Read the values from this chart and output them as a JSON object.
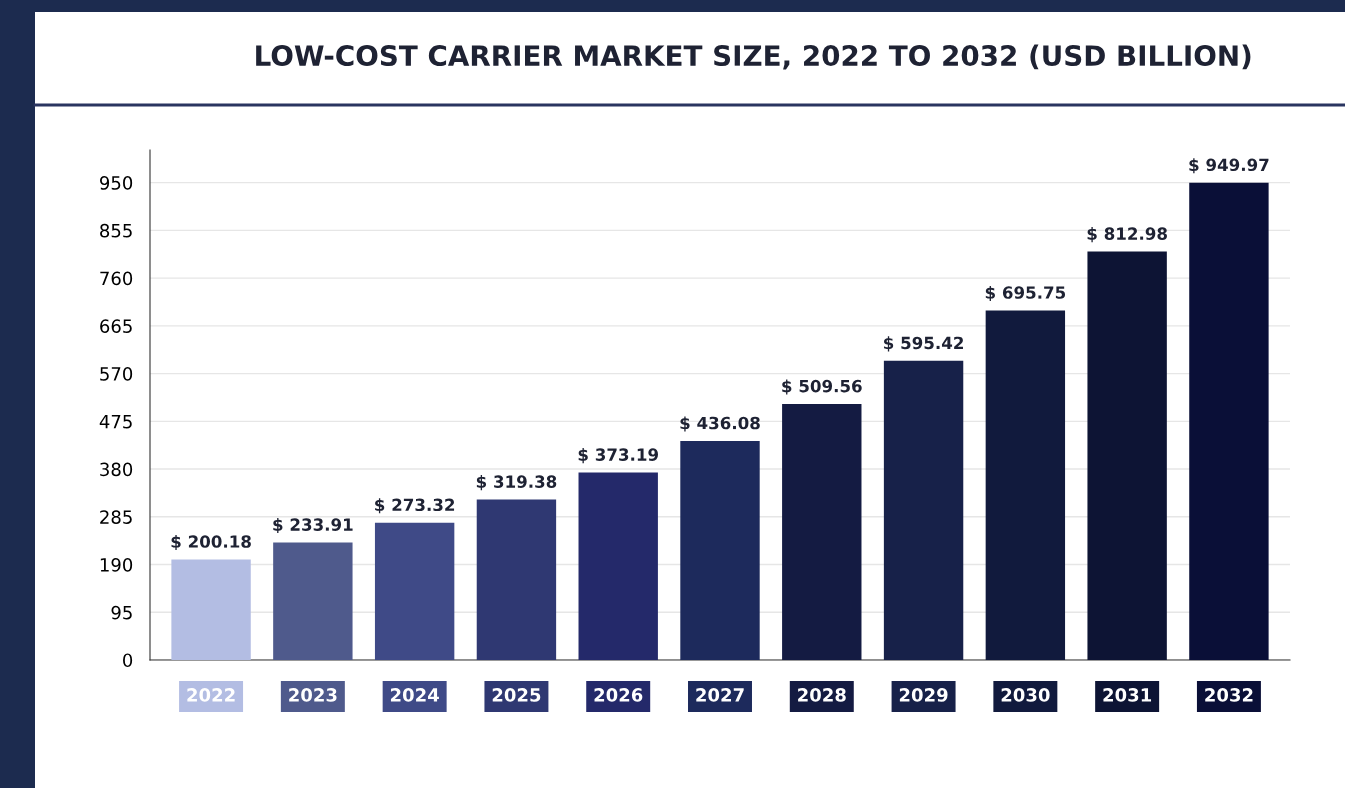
{
  "chart_data": {
    "type": "bar",
    "title": "LOW-COST CARRIER MARKET SIZE, 2022 TO 2032 (USD BILLION)",
    "categories": [
      "2022",
      "2023",
      "2024",
      "2025",
      "2026",
      "2027",
      "2028",
      "2029",
      "2030",
      "2031",
      "2032"
    ],
    "values": [
      200.18,
      233.91,
      273.32,
      319.38,
      373.19,
      436.08,
      509.56,
      595.42,
      695.75,
      812.98,
      949.97
    ],
    "value_labels": [
      "$ 200.18",
      "$ 233.91",
      "$ 273.32",
      "$ 319.38",
      "$ 373.19",
      "$ 436.08",
      "$ 509.56",
      "$ 595.42",
      "$ 695.75",
      "$ 812.98",
      "$ 949.97"
    ],
    "colors": [
      "#b3bde3",
      "#4f5a8c",
      "#3f4a87",
      "#2f3872",
      "#24296a",
      "#1d2a5c",
      "#141b42",
      "#172149",
      "#111a3d",
      "#0d1434",
      "#0a0f37"
    ],
    "ylim": [
      0,
      1015
    ],
    "yticks": [
      0,
      95,
      190,
      285,
      380,
      475,
      570,
      665,
      760,
      855,
      950
    ],
    "grid": "y",
    "legend": false
  }
}
